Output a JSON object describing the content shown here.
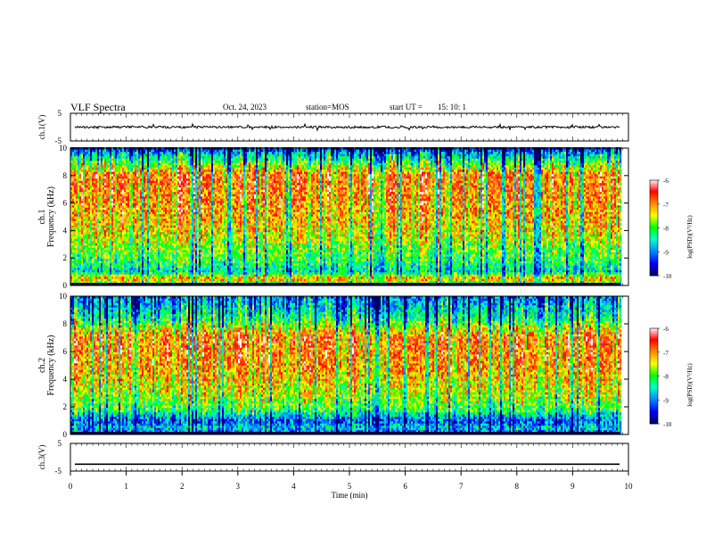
{
  "header": {
    "title": "VLF Spectra",
    "date": "Oct. 24, 2023",
    "station": "station=MOS",
    "start_label": "start  UT =",
    "start_time": "15: 10: 1"
  },
  "colors": {
    "colormap": [
      "#000066",
      "#0000ff",
      "#0088ff",
      "#00ffcc",
      "#00ff00",
      "#ffff00",
      "#ff8800",
      "#ff0000",
      "#ffffff"
    ],
    "trace": "#000000",
    "background": "#ffffff"
  },
  "chart_data": [
    {
      "type": "line",
      "name": "ch1-waveform",
      "ylabel": "ch.1(V)",
      "ylim": [
        -5,
        5
      ],
      "yticks": [
        "5",
        "-5"
      ],
      "xlim": [
        0,
        10
      ],
      "description_values": {
        "baseline_v": 0,
        "noise_amplitude_v": 0.4
      }
    },
    {
      "type": "heatmap",
      "name": "ch1-spectrogram",
      "ylabel": "ch.1",
      "ylabel2": "Frequency (kHz)",
      "ylim": [
        0,
        10
      ],
      "yticks": [
        "0",
        "2",
        "4",
        "6",
        "8",
        "10"
      ],
      "xlim": [
        0,
        9.85
      ],
      "colorbar": {
        "label": "log(PSD)(V²/Hz)",
        "range": [
          -10,
          -6
        ],
        "ticks": [
          "-6",
          "-7",
          "-8",
          "-9",
          "-10"
        ]
      },
      "intensity_profile_by_freq_khz": [
        [
          0,
          -8.4
        ],
        [
          0.5,
          -7.0
        ],
        [
          1,
          -8.5
        ],
        [
          2,
          -8.0
        ],
        [
          4,
          -7.3
        ],
        [
          6,
          -7.0
        ],
        [
          8,
          -6.8
        ],
        [
          9.5,
          -8.6
        ],
        [
          10,
          -9.5
        ]
      ]
    },
    {
      "type": "heatmap",
      "name": "ch2-spectrogram",
      "ylabel": "ch.2",
      "ylabel2": "Frequency (kHz)",
      "ylim": [
        0,
        10
      ],
      "yticks": [
        "0",
        "2",
        "4",
        "6",
        "8",
        "10"
      ],
      "xlim": [
        0,
        9.85
      ],
      "colorbar": {
        "label": "log(PSD)(V²/Hz)",
        "range": [
          -10,
          -6
        ],
        "ticks": [
          "-6",
          "-7",
          "-8",
          "-9",
          "-10"
        ]
      },
      "intensity_profile_by_freq_khz": [
        [
          0,
          -9.3
        ],
        [
          0.5,
          -8.6
        ],
        [
          1,
          -9.2
        ],
        [
          1.8,
          -8.0
        ],
        [
          3,
          -7.5
        ],
        [
          5,
          -7.0
        ],
        [
          7,
          -6.8
        ],
        [
          8.5,
          -8.3
        ],
        [
          9.5,
          -8.8
        ],
        [
          10,
          -9.0
        ]
      ]
    },
    {
      "type": "line",
      "name": "ch3-waveform",
      "ylabel": "ch.3(V)",
      "ylim": [
        -5,
        5
      ],
      "yticks": [
        "5",
        "-5"
      ],
      "xlim": [
        0,
        10
      ],
      "xlabel": "Time  (min)",
      "xticks": [
        "0",
        "1",
        "2",
        "3",
        "4",
        "5",
        "6",
        "7",
        "8",
        "9",
        "10"
      ],
      "description_values": {
        "baseline_v": -2.5,
        "noise_amplitude_v": 0
      }
    }
  ]
}
